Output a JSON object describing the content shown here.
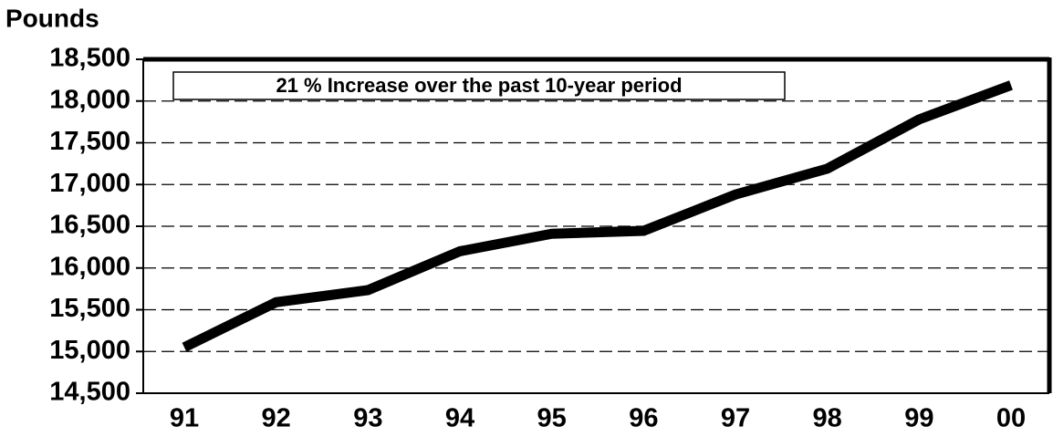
{
  "chart_data": {
    "type": "line",
    "y_axis_label": "Pounds",
    "annotation": "21 % Increase over the past 10-year period",
    "categories": [
      "91",
      "92",
      "93",
      "94",
      "95",
      "96",
      "97",
      "98",
      "99",
      "00"
    ],
    "series": [
      {
        "name": "Pounds",
        "color": "#000000",
        "values": [
          15050,
          15590,
          15735,
          16200,
          16410,
          16445,
          16880,
          17190,
          17780,
          18190
        ]
      }
    ],
    "ylim": [
      14500,
      18500
    ],
    "yticks": [
      {
        "value": 14500,
        "label": "14,500"
      },
      {
        "value": 15000,
        "label": "15,000"
      },
      {
        "value": 15500,
        "label": "15,500"
      },
      {
        "value": 16000,
        "label": "16,000"
      },
      {
        "value": 16500,
        "label": "16,500"
      },
      {
        "value": 17000,
        "label": "17,000"
      },
      {
        "value": 17500,
        "label": "17,500"
      },
      {
        "value": 18000,
        "label": "18,000"
      },
      {
        "value": 18500,
        "label": "18,500"
      }
    ],
    "grid": true
  }
}
